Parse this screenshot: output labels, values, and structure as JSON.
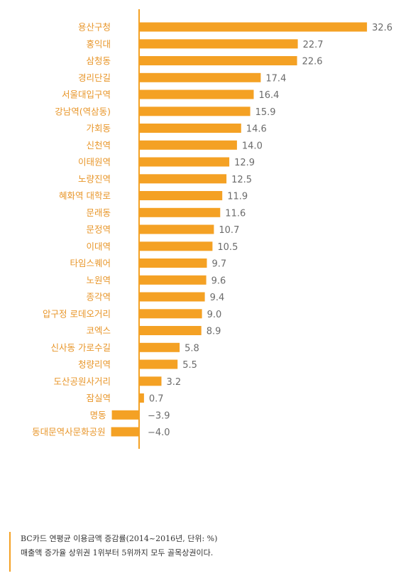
{
  "chart_data": {
    "type": "bar",
    "orientation": "horizontal",
    "categories": [
      "용산구청",
      "홍익대",
      "삼청동",
      "경리단길",
      "서울대입구역",
      "강남역(역삼동)",
      "가회동",
      "신천역",
      "이태원역",
      "노량진역",
      "혜화역 대학로",
      "문래동",
      "문정역",
      "이대역",
      "타임스퀘어",
      "노원역",
      "종각역",
      "압구정 로데오거리",
      "코엑스",
      "신사동 가로수길",
      "청량리역",
      "도산공원사거리",
      "잠실역",
      "명동",
      "동대문역사문화공원"
    ],
    "values": [
      32.6,
      22.7,
      22.6,
      17.4,
      16.4,
      15.9,
      14.6,
      14.0,
      12.9,
      12.5,
      11.9,
      11.6,
      10.7,
      10.5,
      9.7,
      9.6,
      9.4,
      9.0,
      8.9,
      5.8,
      5.5,
      3.2,
      0.7,
      -3.9,
      -4.0
    ],
    "value_labels": [
      "32.6",
      "22.7",
      "22.6",
      "17.4",
      "16.4",
      "15.9",
      "14.6",
      "14.0",
      "12.9",
      "12.5",
      "11.9",
      "11.6",
      "10.7",
      "10.5",
      "9.7",
      "9.6",
      "9.4",
      "9.0",
      "8.9",
      "5.8",
      "5.5",
      "3.2",
      "0.7",
      "−3.9",
      "−4.0"
    ],
    "xlim": [
      -5,
      33
    ],
    "bar_color": "#f4a124",
    "axis_color": "#f4a124",
    "category_label_color": "#e8962a",
    "value_label_color": "#6b6b6b",
    "grid": false,
    "legend": "none"
  },
  "caption": {
    "line1": "BC카드 연평균 이용금액 증감률(2014~2016년, 단위: %)",
    "line2": "매출액 증가율 상위권 1위부터 5위까지 모두 골목상권이다.",
    "border_color": "#f4a124"
  }
}
